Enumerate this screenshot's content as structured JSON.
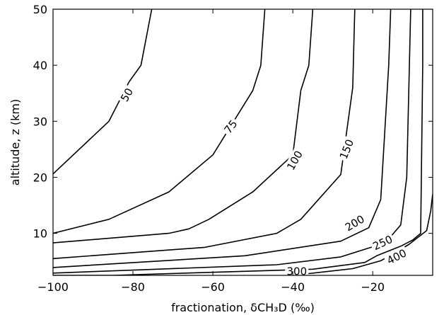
{
  "chart_data": {
    "type": "line",
    "xlabel": "fractionation, δCH₃D (‰)",
    "ylabel": "altitude, z (km)",
    "xlim": [
      -100,
      -5
    ],
    "ylim": [
      2.5,
      50
    ],
    "xticks": [
      -100,
      -80,
      -60,
      -40,
      -20
    ],
    "yticks": [
      10,
      20,
      30,
      40,
      50
    ],
    "xtick_labels": [
      "−100",
      "−80",
      "−60",
      "−40",
      "−20"
    ],
    "ytick_labels": [
      "10",
      "20",
      "30",
      "40",
      "50"
    ],
    "grid": false,
    "series": [
      {
        "name": "50",
        "points": [
          [
            -100,
            20.6
          ],
          [
            -86,
            30
          ],
          [
            -81,
            37
          ],
          [
            -78,
            40
          ],
          [
            -75.3,
            50
          ]
        ]
      },
      {
        "name": "75",
        "points": [
          [
            -100,
            10
          ],
          [
            -86,
            12.5
          ],
          [
            -71,
            17.4
          ],
          [
            -60,
            24
          ],
          [
            -50,
            35.5
          ],
          [
            -48,
            40
          ],
          [
            -47,
            50
          ]
        ]
      },
      {
        "name": "100",
        "points": [
          [
            -100,
            8.3
          ],
          [
            -71,
            10
          ],
          [
            -66,
            10.8
          ],
          [
            -61,
            12.5
          ],
          [
            -50,
            17.4
          ],
          [
            -40,
            24
          ],
          [
            -38,
            35.5
          ],
          [
            -36,
            40
          ],
          [
            -35,
            50
          ]
        ]
      },
      {
        "name": "150",
        "points": [
          [
            -100,
            5.5
          ],
          [
            -62,
            7.5
          ],
          [
            -44,
            10
          ],
          [
            -38,
            12.5
          ],
          [
            -28,
            20.5
          ],
          [
            -25,
            36
          ],
          [
            -24.5,
            50
          ]
        ]
      },
      {
        "name": "200",
        "points": [
          [
            -100,
            3.9
          ],
          [
            -52,
            6
          ],
          [
            -28,
            8.6
          ],
          [
            -21,
            11
          ],
          [
            -18,
            16
          ],
          [
            -16,
            40
          ],
          [
            -15.5,
            50
          ]
        ]
      },
      {
        "name": "250",
        "points": [
          [
            -100,
            2.9
          ],
          [
            -44,
            4.4
          ],
          [
            -28,
            5.8
          ],
          [
            -20,
            7.6
          ],
          [
            -16,
            9
          ],
          [
            -13,
            11.5
          ],
          [
            -11.5,
            20
          ],
          [
            -10.5,
            50
          ]
        ]
      },
      {
        "name": "300",
        "points": [
          [
            -100,
            2.5
          ],
          [
            -85,
            2.5
          ],
          [
            -35,
            3.6
          ],
          [
            -22,
            4.8
          ],
          [
            -19,
            6
          ],
          [
            -13,
            7.7
          ],
          [
            -10,
            8.8
          ],
          [
            -8,
            10
          ],
          [
            -7.5,
            40
          ],
          [
            -7.5,
            50
          ]
        ]
      },
      {
        "name": "400",
        "points": [
          [
            -40,
            2.5
          ],
          [
            -25,
            3.7
          ],
          [
            -18,
            5.1
          ],
          [
            -11,
            8
          ],
          [
            -6.5,
            10.5
          ],
          [
            -5.5,
            14
          ],
          [
            -5,
            17
          ]
        ]
      }
    ],
    "contour_labels": [
      {
        "text": "50",
        "x": -81.5,
        "y": 34.7,
        "angle": -60
      },
      {
        "text": "75",
        "x": -55.5,
        "y": 29,
        "angle": -52
      },
      {
        "text": "100",
        "x": -39.5,
        "y": 23,
        "angle": -61
      },
      {
        "text": "150",
        "x": -26.5,
        "y": 25,
        "angle": -68
      },
      {
        "text": "200",
        "x": -24.5,
        "y": 11.8,
        "angle": -31
      },
      {
        "text": "250",
        "x": -17.5,
        "y": 8.3,
        "angle": -25
      },
      {
        "text": "300",
        "x": -39,
        "y": 3.2,
        "angle": 0
      },
      {
        "text": "400",
        "x": -14,
        "y": 5.8,
        "angle": -27
      }
    ]
  }
}
